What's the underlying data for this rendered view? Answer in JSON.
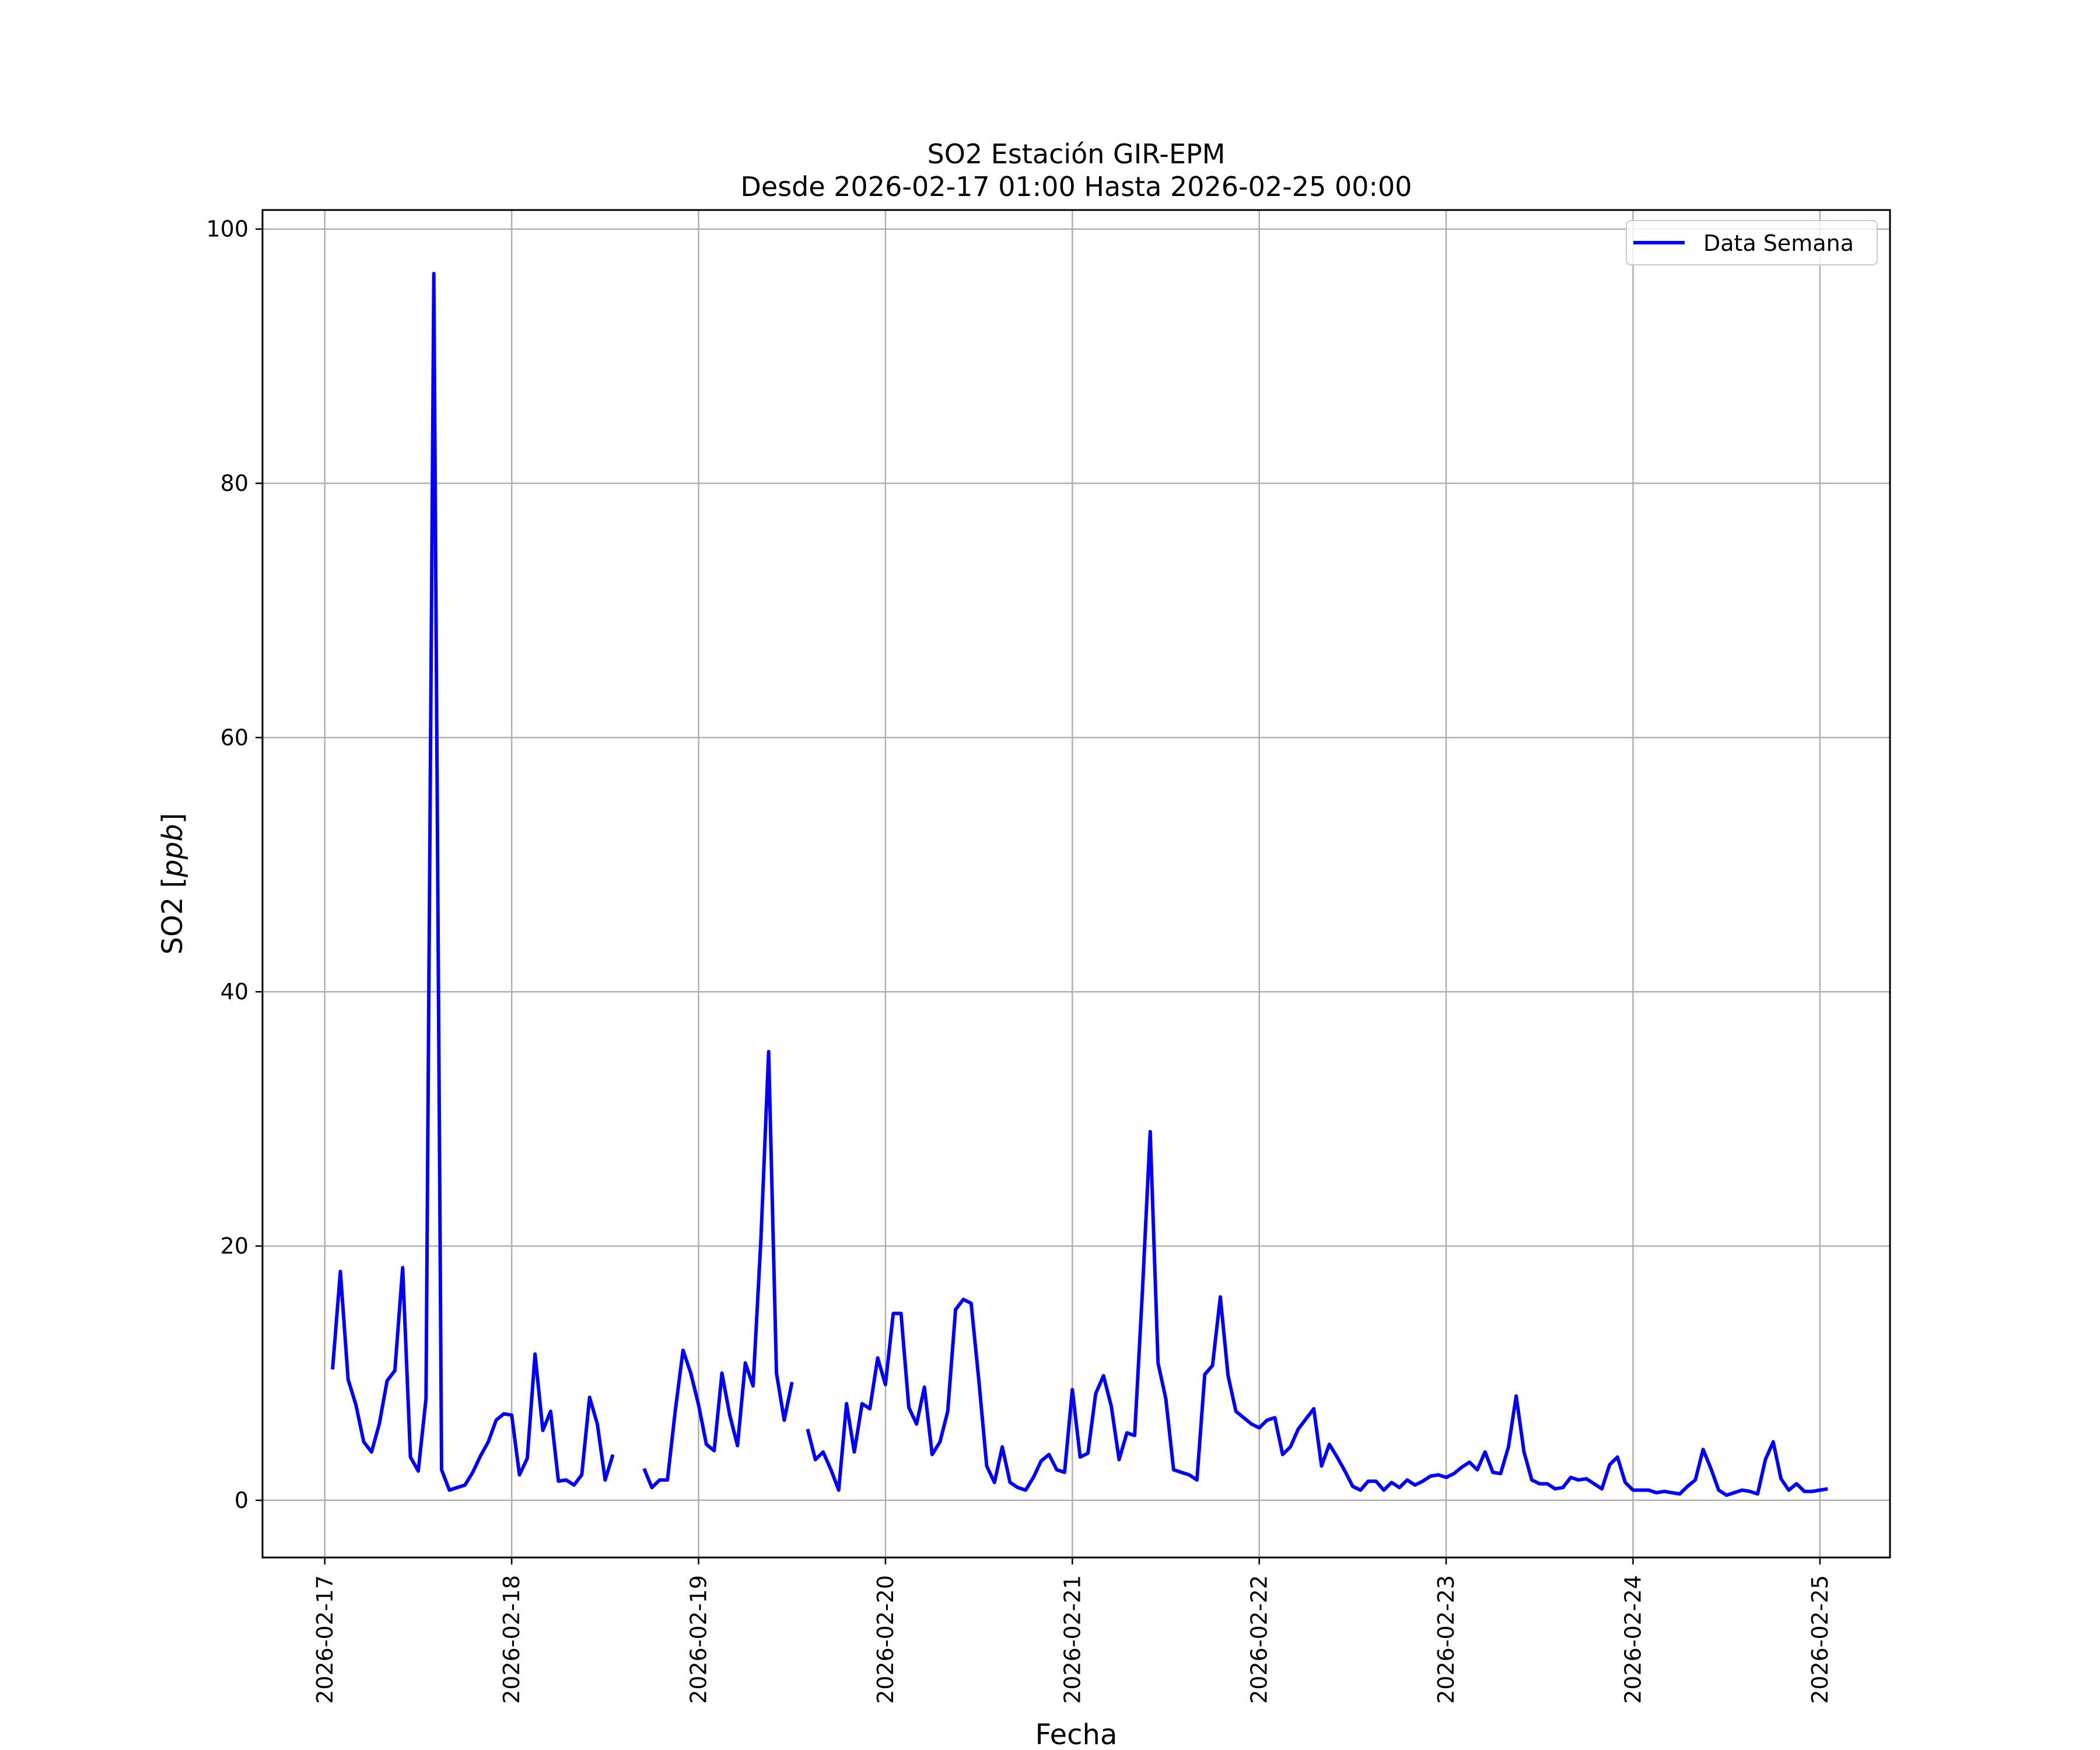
{
  "chart_data": {
    "type": "line",
    "title": "SO2 Estación GIR-EPM",
    "subtitle": "Desde 2026-02-17 01:00 Hasta 2026-02-25 00:00",
    "xlabel": "Fecha",
    "ylabel": "SO2 [ppb]",
    "ylabel_prefix": "SO2 [",
    "ylabel_unit": "ppb",
    "ylabel_suffix": "]",
    "xlim": [
      "2026-02-16 16:00",
      "2026-02-25 09:00"
    ],
    "ylim": [
      -4.5,
      101.5
    ],
    "x_ticks": [
      "2026-02-17",
      "2026-02-18",
      "2026-02-19",
      "2026-02-20",
      "2026-02-21",
      "2026-02-22",
      "2026-02-23",
      "2026-02-24",
      "2026-02-25"
    ],
    "y_ticks": [
      0,
      20,
      40,
      60,
      80,
      100
    ],
    "grid": true,
    "legend_position": "upper right",
    "series": [
      {
        "name": "Data Semana",
        "color": "#0000ff",
        "start": "2026-02-17 01:00",
        "step_hours": 1,
        "values": [
          10.3,
          18.0,
          9.5,
          7.5,
          4.6,
          3.8,
          6.0,
          9.4,
          10.2,
          18.3,
          3.4,
          2.3,
          8.0,
          96.5,
          2.4,
          0.8,
          1.0,
          1.2,
          2.2,
          3.5,
          4.6,
          6.3,
          6.8,
          6.7,
          2.0,
          3.3,
          11.5,
          5.5,
          7.0,
          1.5,
          1.6,
          1.2,
          2.0,
          8.1,
          6.0,
          1.6,
          3.6,
          null,
          null,
          null,
          2.5,
          1.0,
          1.6,
          1.6,
          7.0,
          11.8,
          10.0,
          7.5,
          4.4,
          3.9,
          10.0,
          6.7,
          4.3,
          10.8,
          9.0,
          20.5,
          35.3,
          10.0,
          6.3,
          9.3,
          null,
          5.6,
          3.2,
          3.8,
          2.4,
          0.8,
          7.6,
          3.8,
          7.6,
          7.2,
          11.2,
          9.1,
          14.7,
          14.7,
          7.3,
          6.0,
          8.9,
          3.6,
          4.6,
          7.0,
          15.0,
          15.8,
          15.5,
          9.4,
          2.7,
          1.4,
          4.2,
          1.4,
          1.0,
          0.8,
          1.8,
          3.1,
          3.6,
          2.4,
          2.2,
          8.7,
          3.4,
          3.7,
          8.4,
          9.8,
          7.4,
          3.2,
          5.3,
          5.1,
          16.5,
          29.0,
          10.8,
          8.0,
          2.4,
          2.2,
          2.0,
          1.6,
          9.9,
          10.6,
          16.0,
          9.8,
          7.0,
          6.5,
          6.0,
          5.7,
          6.3,
          6.5,
          3.6,
          4.2,
          5.6,
          6.4,
          7.2,
          2.7,
          4.4,
          3.4,
          2.3,
          1.1,
          0.8,
          1.5,
          1.5,
          0.8,
          1.4,
          1.0,
          1.6,
          1.2,
          1.5,
          1.9,
          2.0,
          1.8,
          2.1,
          2.6,
          3.0,
          2.4,
          3.8,
          2.2,
          2.1,
          4.2,
          8.2,
          3.8,
          1.6,
          1.3,
          1.3,
          0.9,
          1.0,
          1.8,
          1.6,
          1.7,
          1.3,
          0.9,
          2.8,
          3.4,
          1.4,
          0.8,
          0.8,
          0.8,
          0.6,
          0.7,
          0.6,
          0.5,
          1.1,
          1.6,
          4.0,
          2.5,
          0.8,
          0.4,
          0.6,
          0.8,
          0.7,
          0.5,
          3.2,
          4.6,
          1.7,
          0.8,
          1.3,
          0.7,
          0.7,
          0.8,
          0.9
        ]
      }
    ]
  }
}
